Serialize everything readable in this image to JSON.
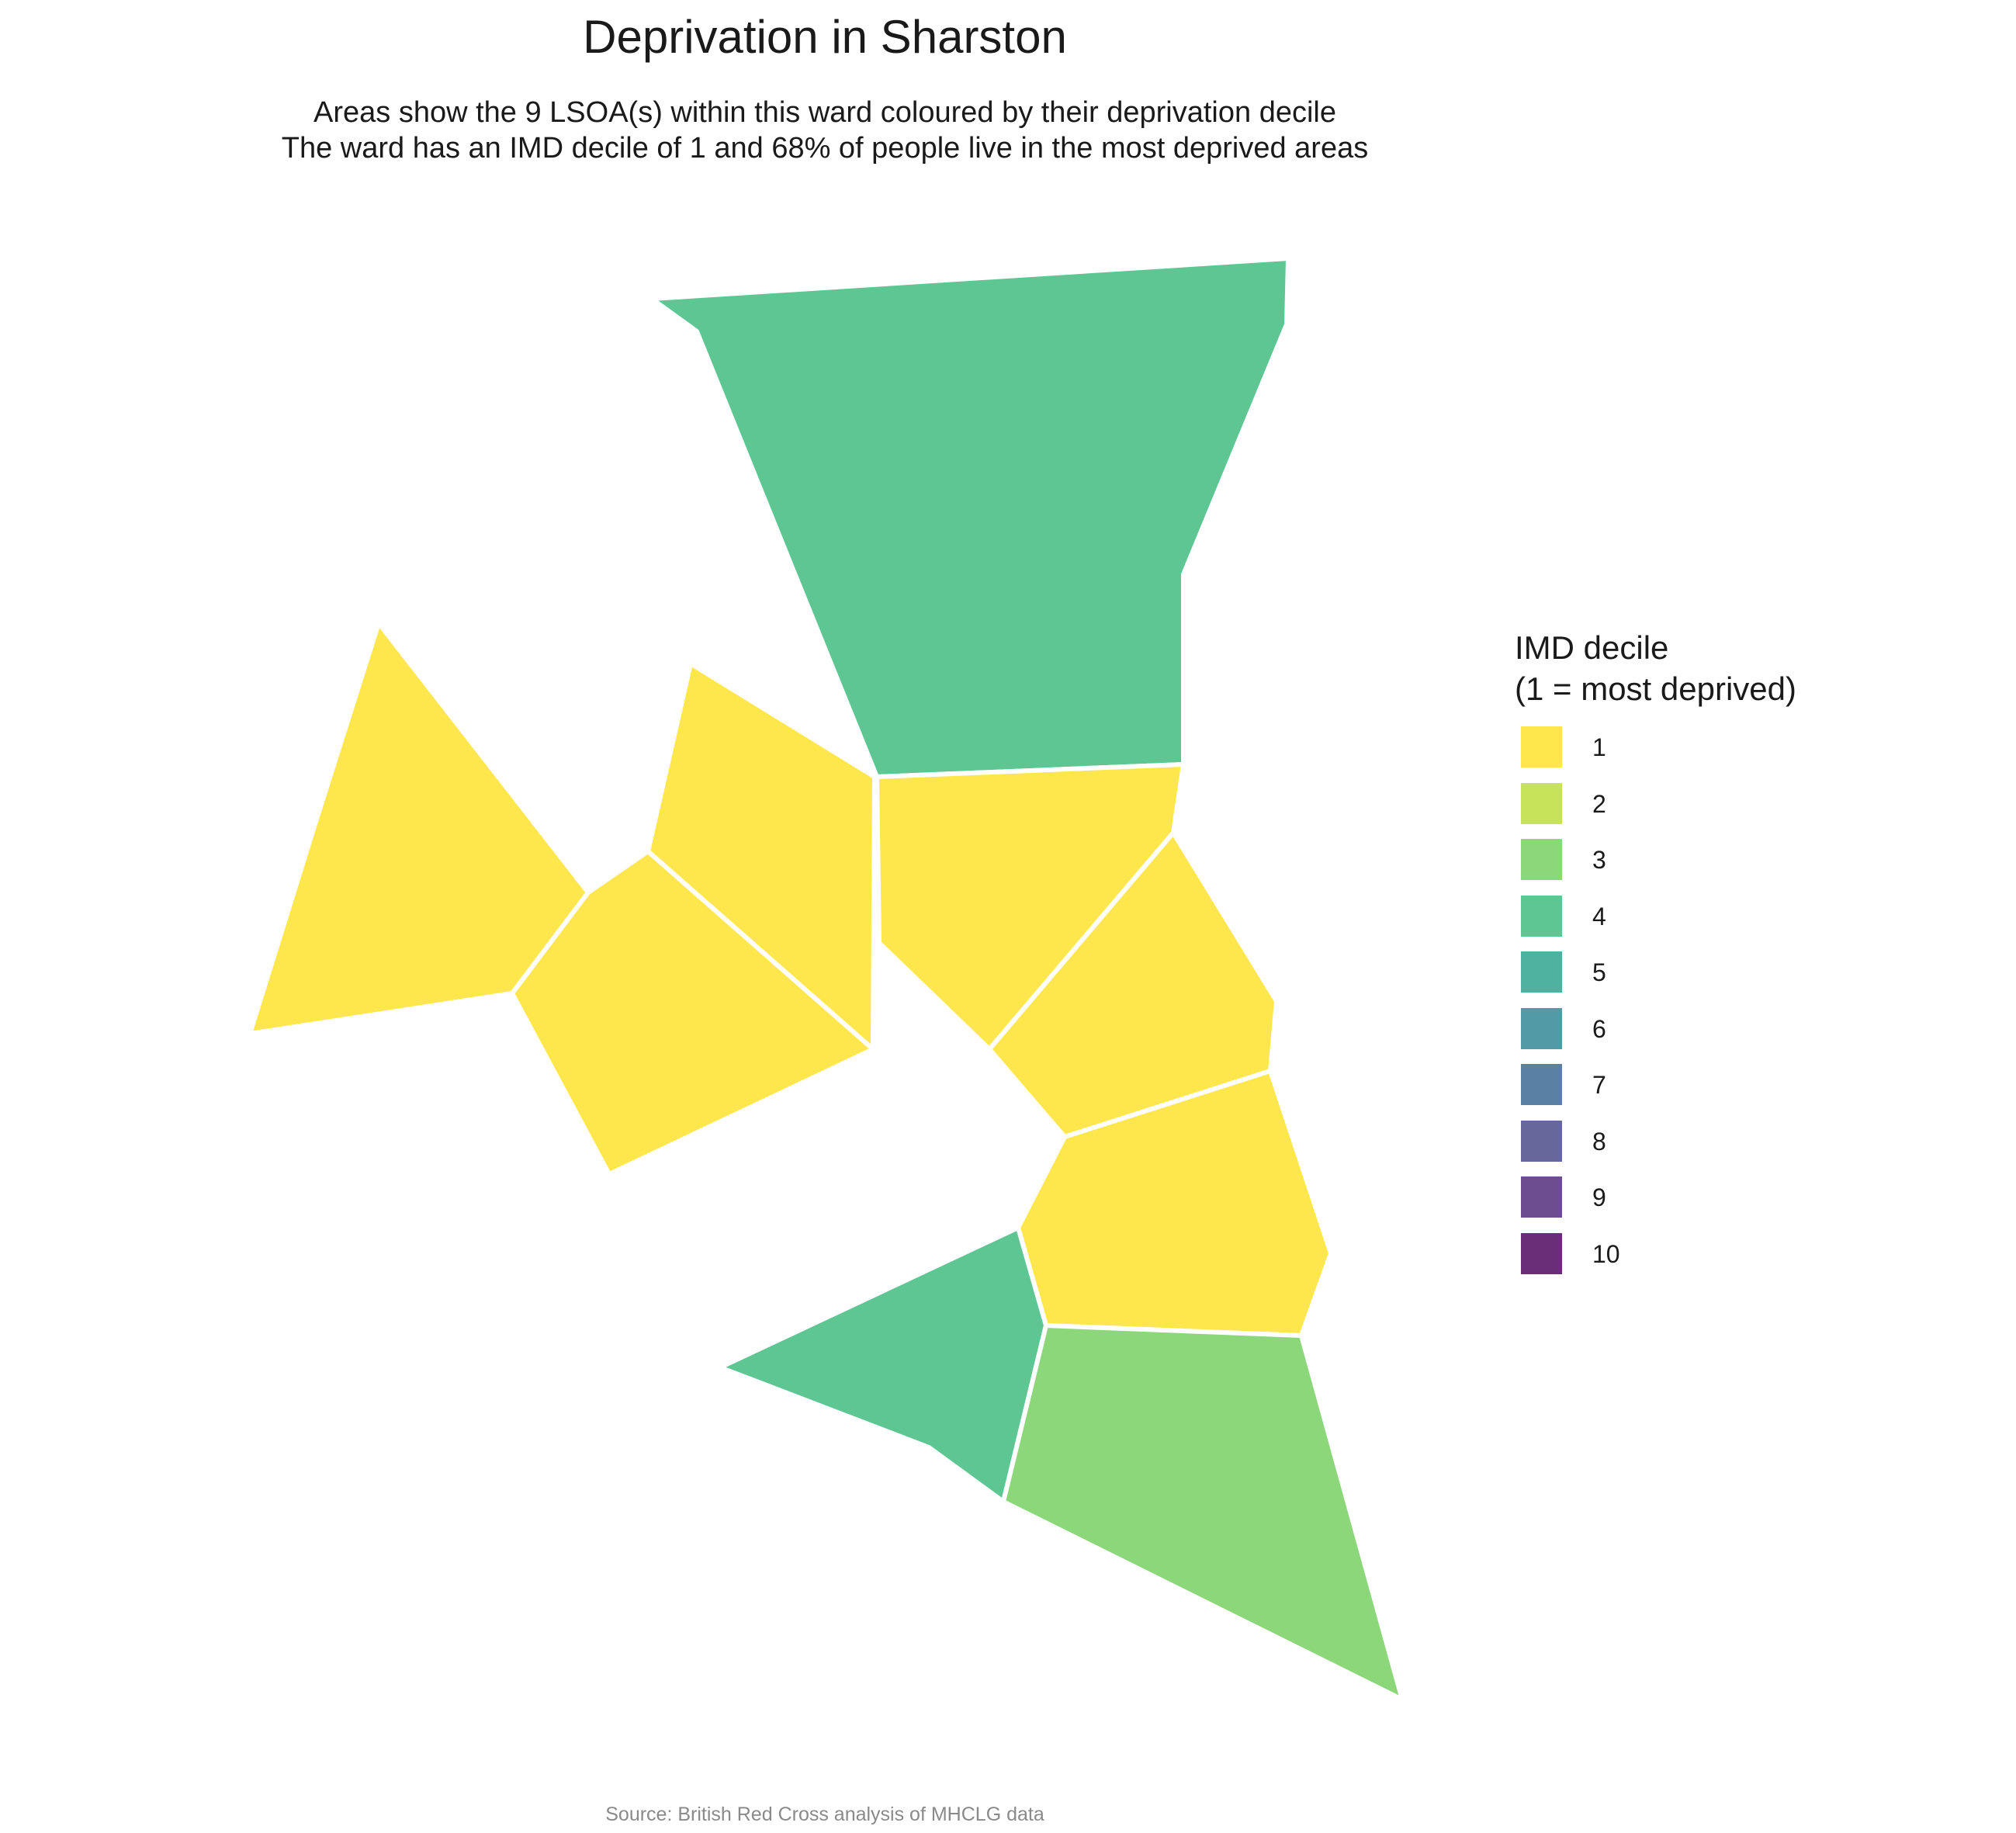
{
  "title": "Deprivation in Sharston",
  "subtitle_line1": "Areas show the 9 LSOA(s) within this ward coloured by their deprivation decile",
  "subtitle_line2": "The ward has an IMD decile of 1 and 68% of people live in the most deprived areas",
  "caption": "Source: British Red Cross analysis of MHCLG data",
  "legend": {
    "title_line1": "IMD decile",
    "title_line2": "(1 = most deprived)",
    "items": [
      {
        "label": "1",
        "color": "#FDE74C"
      },
      {
        "label": "2",
        "color": "#C7E35A"
      },
      {
        "label": "3",
        "color": "#8BD77A"
      },
      {
        "label": "4",
        "color": "#5DC693"
      },
      {
        "label": "5",
        "color": "#4FB2A0"
      },
      {
        "label": "6",
        "color": "#529AA5"
      },
      {
        "label": "7",
        "color": "#5A80A3"
      },
      {
        "label": "8",
        "color": "#66679B"
      },
      {
        "label": "9",
        "color": "#6D4D90"
      },
      {
        "label": "10",
        "color": "#6A2E78"
      }
    ]
  },
  "lsoa_areas": [
    {
      "decile": 4,
      "color": "#5DC693"
    },
    {
      "decile": 1,
      "color": "#FDE74C"
    },
    {
      "decile": 1,
      "color": "#FDE74C"
    },
    {
      "decile": 1,
      "color": "#FDE74C"
    },
    {
      "decile": 1,
      "color": "#FDE74C"
    },
    {
      "decile": 1,
      "color": "#FDE74C"
    },
    {
      "decile": 1,
      "color": "#FDE74C"
    },
    {
      "decile": 4,
      "color": "#5DC693"
    },
    {
      "decile": 3,
      "color": "#8BD77A"
    }
  ]
}
